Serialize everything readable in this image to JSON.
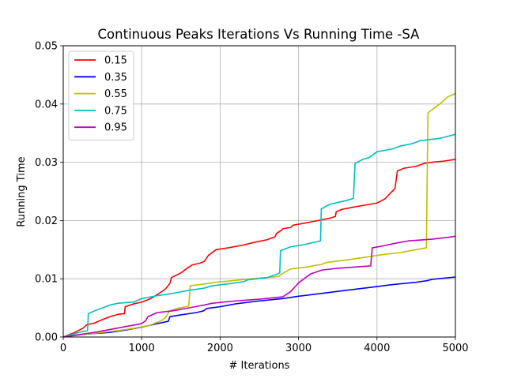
{
  "chart_data": {
    "type": "line",
    "title": "Continuous Peaks Iterations Vs Running Time -SA",
    "xlabel": "# Iterations",
    "ylabel": "Running Time",
    "xlim": [
      0,
      5000
    ],
    "ylim": [
      0,
      0.05
    ],
    "xticks": [
      0,
      1000,
      2000,
      3000,
      4000,
      5000
    ],
    "xtick_labels": [
      "0",
      "1000",
      "2000",
      "3000",
      "4000",
      "5000"
    ],
    "yticks": [
      0,
      0.01,
      0.02,
      0.03,
      0.04,
      0.05
    ],
    "ytick_labels": [
      "0.00",
      "0.01",
      "0.02",
      "0.03",
      "0.04",
      "0.05"
    ],
    "grid": true,
    "legend_position": "top-left",
    "series": [
      {
        "name": "0.15",
        "color": "#ff0000",
        "points": [
          [
            0,
            0
          ],
          [
            150,
            0.0008
          ],
          [
            250,
            0.0015
          ],
          [
            300,
            0.0021
          ],
          [
            400,
            0.0024
          ],
          [
            500,
            0.003
          ],
          [
            600,
            0.0035
          ],
          [
            700,
            0.0039
          ],
          [
            780,
            0.004
          ],
          [
            790,
            0.0052
          ],
          [
            900,
            0.0057
          ],
          [
            1000,
            0.006
          ],
          [
            1100,
            0.0065
          ],
          [
            1200,
            0.0073
          ],
          [
            1300,
            0.0082
          ],
          [
            1360,
            0.0092
          ],
          [
            1380,
            0.0102
          ],
          [
            1500,
            0.011
          ],
          [
            1600,
            0.012
          ],
          [
            1650,
            0.0124
          ],
          [
            1750,
            0.0127
          ],
          [
            1800,
            0.013
          ],
          [
            1850,
            0.014
          ],
          [
            1950,
            0.015
          ],
          [
            2100,
            0.0153
          ],
          [
            2300,
            0.0158
          ],
          [
            2450,
            0.0163
          ],
          [
            2600,
            0.0167
          ],
          [
            2700,
            0.0172
          ],
          [
            2720,
            0.0178
          ],
          [
            2780,
            0.0183
          ],
          [
            2800,
            0.0186
          ],
          [
            2900,
            0.0188
          ],
          [
            2930,
            0.0192
          ],
          [
            3100,
            0.0196
          ],
          [
            3250,
            0.02
          ],
          [
            3400,
            0.0204
          ],
          [
            3470,
            0.0207
          ],
          [
            3480,
            0.0215
          ],
          [
            3550,
            0.0219
          ],
          [
            3700,
            0.0223
          ],
          [
            4000,
            0.023
          ],
          [
            4100,
            0.0237
          ],
          [
            4230,
            0.0255
          ],
          [
            4260,
            0.0285
          ],
          [
            4350,
            0.029
          ],
          [
            4500,
            0.0293
          ],
          [
            4600,
            0.0298
          ],
          [
            4700,
            0.03
          ],
          [
            4850,
            0.0302
          ],
          [
            5000,
            0.0305
          ]
        ]
      },
      {
        "name": "0.35",
        "color": "#0000ff",
        "points": [
          [
            0,
            0
          ],
          [
            200,
            0.0004
          ],
          [
            400,
            0.0006
          ],
          [
            600,
            0.0008
          ],
          [
            800,
            0.0012
          ],
          [
            1000,
            0.0017
          ],
          [
            1200,
            0.0023
          ],
          [
            1340,
            0.0027
          ],
          [
            1360,
            0.0035
          ],
          [
            1500,
            0.0038
          ],
          [
            1700,
            0.0042
          ],
          [
            1790,
            0.0045
          ],
          [
            1830,
            0.0049
          ],
          [
            2000,
            0.0052
          ],
          [
            2200,
            0.0057
          ],
          [
            2500,
            0.0062
          ],
          [
            2800,
            0.0066
          ],
          [
            3000,
            0.007
          ],
          [
            3300,
            0.0075
          ],
          [
            3600,
            0.008
          ],
          [
            3900,
            0.0085
          ],
          [
            4200,
            0.009
          ],
          [
            4500,
            0.0094
          ],
          [
            4650,
            0.0097
          ],
          [
            4700,
            0.0099
          ],
          [
            5000,
            0.0103
          ]
        ]
      },
      {
        "name": "0.55",
        "color": "#bfbf00",
        "points": [
          [
            0,
            0
          ],
          [
            300,
            0.0005
          ],
          [
            500,
            0.0008
          ],
          [
            700,
            0.0011
          ],
          [
            900,
            0.0015
          ],
          [
            1100,
            0.002
          ],
          [
            1250,
            0.0028
          ],
          [
            1300,
            0.0033
          ],
          [
            1360,
            0.0045
          ],
          [
            1450,
            0.0049
          ],
          [
            1600,
            0.0053
          ],
          [
            1620,
            0.0088
          ],
          [
            1800,
            0.0091
          ],
          [
            1950,
            0.0094
          ],
          [
            2100,
            0.0096
          ],
          [
            2400,
            0.01
          ],
          [
            2600,
            0.0102
          ],
          [
            2750,
            0.0104
          ],
          [
            2770,
            0.0107
          ],
          [
            2900,
            0.0117
          ],
          [
            3100,
            0.012
          ],
          [
            3300,
            0.0125
          ],
          [
            3360,
            0.0128
          ],
          [
            3600,
            0.0132
          ],
          [
            3900,
            0.0138
          ],
          [
            4100,
            0.0142
          ],
          [
            4300,
            0.0145
          ],
          [
            4500,
            0.015
          ],
          [
            4630,
            0.0153
          ],
          [
            4650,
            0.0385
          ],
          [
            4800,
            0.04
          ],
          [
            4900,
            0.0412
          ],
          [
            5000,
            0.0418
          ]
        ]
      },
      {
        "name": "0.75",
        "color": "#00bfbf",
        "points": [
          [
            0,
            0
          ],
          [
            200,
            0.0008
          ],
          [
            310,
            0.0011
          ],
          [
            320,
            0.004
          ],
          [
            400,
            0.0045
          ],
          [
            500,
            0.005
          ],
          [
            600,
            0.0055
          ],
          [
            700,
            0.0058
          ],
          [
            900,
            0.006
          ],
          [
            1000,
            0.0066
          ],
          [
            1200,
            0.0071
          ],
          [
            1400,
            0.0075
          ],
          [
            1600,
            0.008
          ],
          [
            1800,
            0.0084
          ],
          [
            1900,
            0.0088
          ],
          [
            2150,
            0.0092
          ],
          [
            2300,
            0.0095
          ],
          [
            2350,
            0.0098
          ],
          [
            2600,
            0.0102
          ],
          [
            2730,
            0.0108
          ],
          [
            2760,
            0.011
          ],
          [
            2770,
            0.0148
          ],
          [
            2900,
            0.0155
          ],
          [
            3050,
            0.0158
          ],
          [
            3180,
            0.0162
          ],
          [
            3280,
            0.0165
          ],
          [
            3290,
            0.022
          ],
          [
            3400,
            0.0228
          ],
          [
            3600,
            0.0234
          ],
          [
            3700,
            0.0238
          ],
          [
            3720,
            0.0298
          ],
          [
            3820,
            0.0305
          ],
          [
            3900,
            0.0308
          ],
          [
            4000,
            0.0318
          ],
          [
            4200,
            0.0323
          ],
          [
            4300,
            0.0328
          ],
          [
            4450,
            0.0332
          ],
          [
            4550,
            0.0337
          ],
          [
            4800,
            0.0341
          ],
          [
            5000,
            0.0348
          ]
        ]
      },
      {
        "name": "0.95",
        "color": "#bf00bf",
        "points": [
          [
            0,
            0
          ],
          [
            200,
            0.0004
          ],
          [
            400,
            0.0008
          ],
          [
            600,
            0.0013
          ],
          [
            800,
            0.0018
          ],
          [
            1000,
            0.0023
          ],
          [
            1050,
            0.0028
          ],
          [
            1080,
            0.0035
          ],
          [
            1200,
            0.0042
          ],
          [
            1400,
            0.0045
          ],
          [
            1600,
            0.005
          ],
          [
            1800,
            0.0055
          ],
          [
            1900,
            0.0058
          ],
          [
            2200,
            0.0062
          ],
          [
            2500,
            0.0065
          ],
          [
            2800,
            0.0069
          ],
          [
            2900,
            0.0078
          ],
          [
            3000,
            0.0093
          ],
          [
            3100,
            0.0103
          ],
          [
            3150,
            0.0108
          ],
          [
            3300,
            0.0115
          ],
          [
            3500,
            0.0118
          ],
          [
            3700,
            0.012
          ],
          [
            3920,
            0.0122
          ],
          [
            3940,
            0.0153
          ],
          [
            4100,
            0.0157
          ],
          [
            4200,
            0.016
          ],
          [
            4400,
            0.0165
          ],
          [
            4700,
            0.0168
          ],
          [
            4900,
            0.0171
          ],
          [
            5000,
            0.0173
          ]
        ]
      }
    ]
  }
}
